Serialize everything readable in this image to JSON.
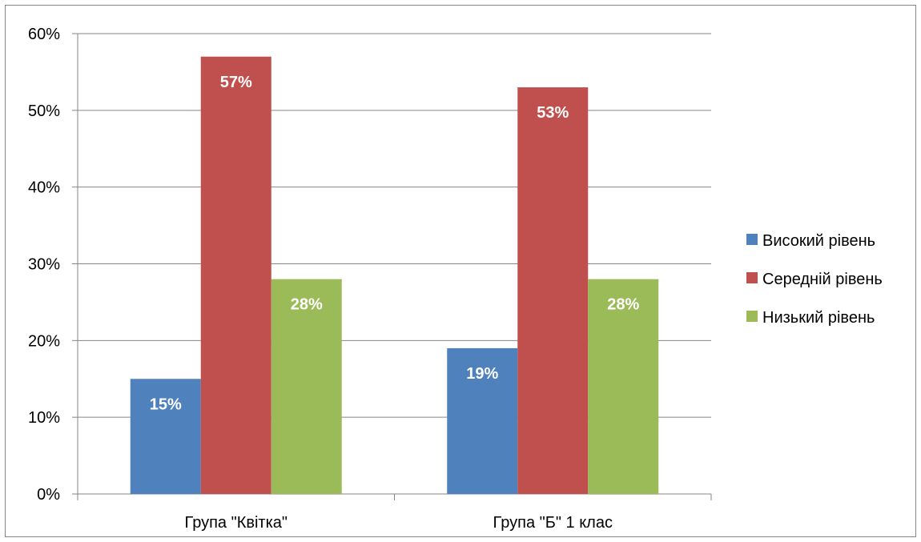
{
  "chart_data": {
    "type": "bar",
    "categories": [
      "Група \"Квітка\"",
      "Група \"Б\" 1 клас"
    ],
    "series": [
      {
        "name": "Високий рівень",
        "values": [
          15,
          19
        ],
        "labels": [
          "15%",
          "19%"
        ],
        "color": "#4F81BD"
      },
      {
        "name": "Середній рівень",
        "values": [
          57,
          53
        ],
        "labels": [
          "57%",
          "53%"
        ],
        "color": "#C0504D"
      },
      {
        "name": "Низький рівень",
        "values": [
          28,
          28
        ],
        "labels": [
          "28%",
          "28%"
        ],
        "color": "#9BBB59"
      }
    ],
    "ylim": [
      0,
      60
    ],
    "yticks": [
      0,
      10,
      20,
      30,
      40,
      50,
      60
    ],
    "ytick_labels": [
      "0%",
      "10%",
      "20%",
      "30%",
      "40%",
      "50%",
      "60%"
    ],
    "grid": true,
    "legend_position": "right",
    "title": "",
    "xlabel": "",
    "ylabel": ""
  },
  "colors": {
    "gridline": "#868686",
    "frame": "#868686"
  }
}
